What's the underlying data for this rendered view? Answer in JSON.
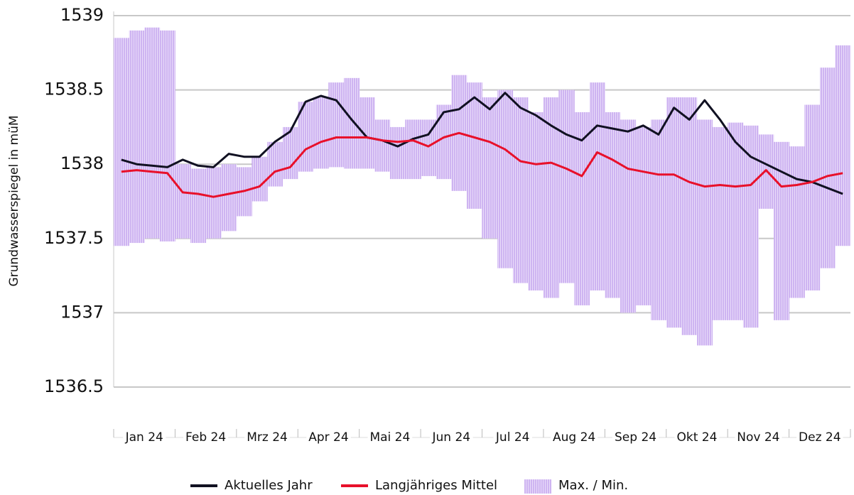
{
  "chart_data": {
    "type": "line",
    "y_label": "Grundwasserspiegel in müM",
    "categories": [
      null,
      null,
      "Jan 24",
      null,
      null,
      null,
      "Feb 24",
      null,
      null,
      null,
      "Mrz 24",
      null,
      null,
      null,
      "Apr 24",
      null,
      null,
      null,
      "Mai 24",
      null,
      null,
      null,
      "Jun 24",
      null,
      null,
      null,
      "Jul 24",
      null,
      null,
      null,
      "Aug 24",
      null,
      null,
      null,
      "Sep 24",
      null,
      null,
      null,
      "Okt 24",
      null,
      null,
      null,
      "Nov 24",
      null,
      null,
      null,
      "Dez 24",
      null
    ],
    "ylim": [
      1536.5,
      1539
    ],
    "yticks": [
      1536.5,
      1537,
      1537.5,
      1538,
      1538.5,
      1539
    ],
    "grid": true,
    "legend": "bottom",
    "band": {
      "name": "Max. / Min.",
      "color": "#c9a8f0",
      "high": [
        1538.85,
        1538.9,
        1538.92,
        1538.9,
        1538.0,
        1537.97,
        1537.98,
        1538.0,
        1537.98,
        1538.05,
        1538.15,
        1538.25,
        1538.42,
        1538.45,
        1538.55,
        1538.58,
        1538.45,
        1538.3,
        1538.25,
        1538.3,
        1538.3,
        1538.4,
        1538.6,
        1538.55,
        1538.45,
        1538.5,
        1538.45,
        1538.35,
        1538.45,
        1538.5,
        1538.35,
        1538.55,
        1538.35,
        1538.3,
        1538.25,
        1538.3,
        1538.45,
        1538.45,
        1538.3,
        1538.25,
        1538.28,
        1538.26,
        1538.2,
        1538.15,
        1538.12,
        1538.4,
        1538.65,
        1538.8
      ],
      "low": [
        1537.45,
        1537.47,
        1537.5,
        1537.48,
        1537.5,
        1537.47,
        1537.5,
        1537.55,
        1537.65,
        1537.75,
        1537.85,
        1537.9,
        1537.95,
        1537.97,
        1537.98,
        1537.97,
        1537.97,
        1537.95,
        1537.9,
        1537.9,
        1537.92,
        1537.9,
        1537.82,
        1537.7,
        1537.5,
        1537.3,
        1537.2,
        1537.15,
        1537.1,
        1537.2,
        1537.05,
        1537.15,
        1537.1,
        1537.0,
        1537.05,
        1536.95,
        1536.9,
        1536.85,
        1536.78,
        1536.95,
        1536.95,
        1536.9,
        1537.7,
        1536.95,
        1537.1,
        1537.15,
        1537.3,
        1537.45
      ]
    },
    "series": [
      {
        "name": "Aktuelles Jahr",
        "color": "#111122",
        "values": [
          1538.03,
          1538.0,
          1537.99,
          1537.98,
          1538.03,
          1537.99,
          1537.98,
          1538.07,
          1538.05,
          1538.05,
          1538.15,
          1538.22,
          1538.42,
          1538.46,
          1538.43,
          1538.3,
          1538.18,
          1538.16,
          1538.12,
          1538.17,
          1538.2,
          1538.35,
          1538.37,
          1538.45,
          1538.37,
          1538.48,
          1538.38,
          1538.33,
          1538.26,
          1538.2,
          1538.16,
          1538.26,
          1538.24,
          1538.22,
          1538.26,
          1538.2,
          1538.38,
          1538.3,
          1538.43,
          1538.3,
          1538.15,
          1538.05,
          1538.0,
          1537.95,
          1537.9,
          1537.88,
          1537.84,
          1537.8
        ]
      },
      {
        "name": "Langjähriges Mittel",
        "color": "#e8102a",
        "values": [
          1537.95,
          1537.96,
          1537.95,
          1537.94,
          1537.81,
          1537.8,
          1537.78,
          1537.8,
          1537.82,
          1537.85,
          1537.95,
          1537.98,
          1538.1,
          1538.15,
          1538.18,
          1538.18,
          1538.18,
          1538.16,
          1538.15,
          1538.16,
          1538.12,
          1538.18,
          1538.21,
          1538.18,
          1538.15,
          1538.1,
          1538.02,
          1538.0,
          1538.01,
          1537.97,
          1537.92,
          1538.08,
          1538.03,
          1537.97,
          1537.95,
          1537.93,
          1537.93,
          1537.88,
          1537.85,
          1537.86,
          1537.85,
          1537.86,
          1537.96,
          1537.85,
          1537.86,
          1537.88,
          1537.92,
          1537.94
        ]
      }
    ]
  }
}
